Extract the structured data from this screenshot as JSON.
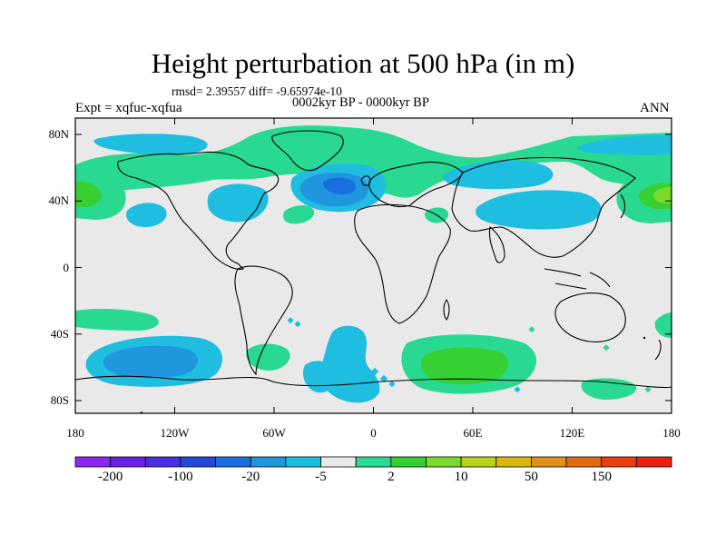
{
  "title": "Height perturbation at 500 hPa (in m)",
  "stats": "rmsd= 2.39557 diff= -9.65974e-10",
  "experiment": "Expt = xqfuc-xqfua",
  "period": "0002kyr BP - 0000kyr BP",
  "season": "ANN",
  "y_axis_labels": [
    "80N",
    "40N",
    "0",
    "40S",
    "80S"
  ],
  "x_axis_labels": [
    "180",
    "120W",
    "60W",
    "0",
    "60E",
    "120E",
    "180"
  ],
  "colorbar": {
    "colors": [
      "#8b26f3",
      "#6b20e8",
      "#4b2ce0",
      "#2148d8",
      "#1a6fe0",
      "#1f96de",
      "#1fbddf",
      "#e9e9e9",
      "#2ad991",
      "#36d032",
      "#7ada2a",
      "#b9d31c",
      "#d9b612",
      "#e0901a",
      "#e56b12",
      "#ea3d10",
      "#ec2010"
    ],
    "labels": [
      "-200",
      "-100",
      "-20",
      "-5",
      "2",
      "10",
      "50",
      "150"
    ]
  },
  "colors": {
    "ocean_background": "#e9e9e9",
    "coastline": "#000000"
  }
}
